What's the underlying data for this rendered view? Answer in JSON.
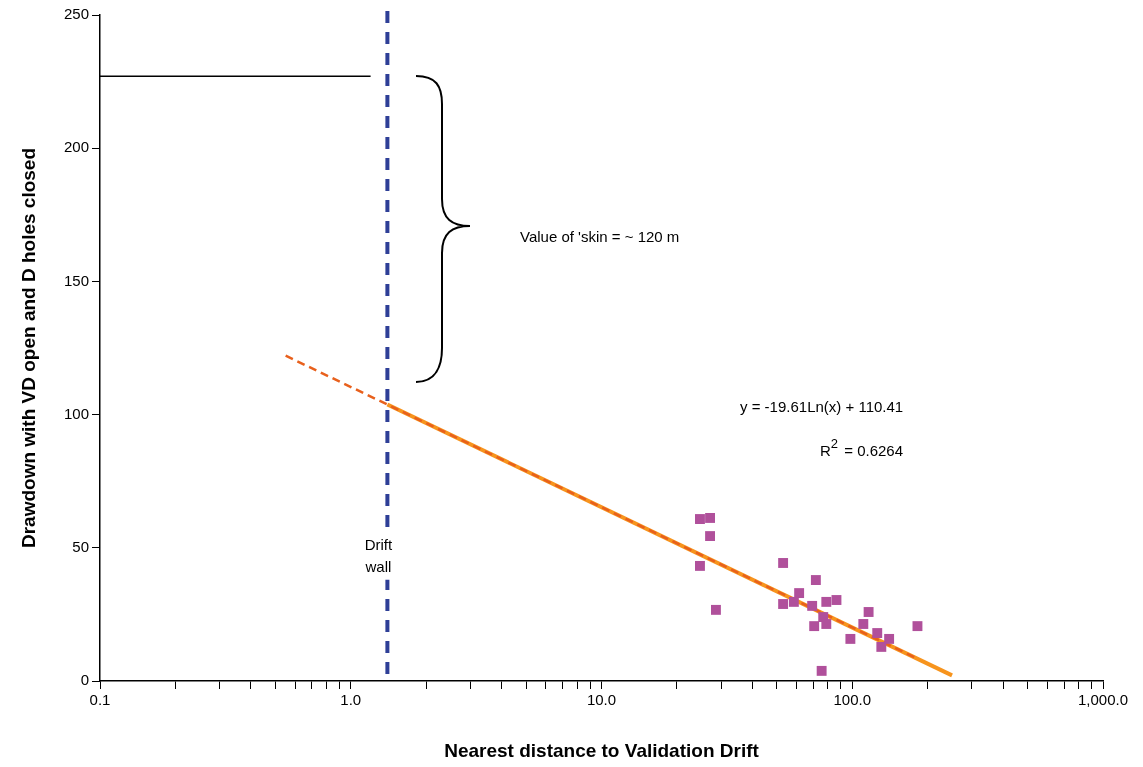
{
  "chart_data": {
    "type": "scatter",
    "xlabel": "Nearest distance to Validation Drift",
    "ylabel": "Drawdown with VD open and D holes closed",
    "log": "x",
    "grid": false,
    "legend": false,
    "xlim": [
      0.1,
      1000
    ],
    "xticks": [
      {
        "value": 0.1,
        "label": "0.1"
      },
      {
        "value": 0.2,
        "label": null
      },
      {
        "value": 0.3,
        "label": null
      },
      {
        "value": 0.4,
        "label": null
      },
      {
        "value": 0.5,
        "label": null
      },
      {
        "value": 0.6,
        "label": null
      },
      {
        "value": 0.7,
        "label": null
      },
      {
        "value": 0.8,
        "label": null
      },
      {
        "value": 0.9,
        "label": null
      },
      {
        "value": 1,
        "label": "1.0"
      },
      {
        "value": 2,
        "label": null
      },
      {
        "value": 3,
        "label": null
      },
      {
        "value": 4,
        "label": null
      },
      {
        "value": 5,
        "label": null
      },
      {
        "value": 6,
        "label": null
      },
      {
        "value": 7,
        "label": null
      },
      {
        "value": 8,
        "label": null
      },
      {
        "value": 9,
        "label": null
      },
      {
        "value": 10,
        "label": "10.0"
      },
      {
        "value": 20,
        "label": null
      },
      {
        "value": 30,
        "label": null
      },
      {
        "value": 40,
        "label": null
      },
      {
        "value": 50,
        "label": null
      },
      {
        "value": 60,
        "label": null
      },
      {
        "value": 70,
        "label": null
      },
      {
        "value": 80,
        "label": null
      },
      {
        "value": 90,
        "label": null
      },
      {
        "value": 100,
        "label": "100.0"
      },
      {
        "value": 200,
        "label": null
      },
      {
        "value": 300,
        "label": null
      },
      {
        "value": 400,
        "label": null
      },
      {
        "value": 500,
        "label": null
      },
      {
        "value": 600,
        "label": null
      },
      {
        "value": 700,
        "label": null
      },
      {
        "value": 800,
        "label": null
      },
      {
        "value": 900,
        "label": null
      },
      {
        "value": 1000,
        "label": "1,000.0"
      }
    ],
    "ylim": [
      0,
      250
    ],
    "yticks": [
      0,
      50,
      100,
      150,
      200,
      250
    ],
    "series": [
      {
        "marker": "square",
        "color": "#b0509b",
        "x": [
          24.7,
          27.1,
          27.1,
          24.7,
          28.6,
          53,
          71.6,
          61.4,
          53,
          58.5,
          69.2,
          78.8,
          86.5,
          76.6,
          70.5,
          78.8,
          98.3,
          116.2,
          110.7,
          125.8,
          140.3,
          130.6,
          182,
          75.5
        ],
        "values": [
          60.8,
          61.2,
          54.4,
          43.2,
          26.7,
          44.3,
          37.9,
          33,
          28.9,
          29.7,
          28.2,
          29.7,
          30.4,
          24,
          20.6,
          21.4,
          15.8,
          25.9,
          21.4,
          18,
          15.8,
          12.8,
          20.6,
          3.8
        ]
      },
      {
        "type": "line",
        "marker": "none",
        "line_style": "dashed",
        "color": "#e8601c",
        "x": [
          0.55,
          180
        ],
        "values": [
          122.1,
          8.6
        ]
      },
      {
        "type": "line",
        "marker": "none",
        "line_style": "solid",
        "color": "#f7941d",
        "x": [
          1.4,
          250
        ],
        "values": [
          103.8,
          2.1
        ]
      },
      {
        "type": "line",
        "marker": "none",
        "line_style": "solid",
        "color": "#000000",
        "x": [
          0.1,
          1.2
        ],
        "values": [
          227,
          227
        ]
      }
    ],
    "ref_lines": [
      {
        "axis": "x",
        "value": 1.4,
        "label": "Drift wall",
        "color": "#2e3f97",
        "line_style": "dashed"
      }
    ],
    "annotations": [
      "Value of 'skin = ~ 120 m",
      "y = -19.61Ln(x) + 110.41",
      "R$^{2}$ = 0.6264"
    ]
  }
}
